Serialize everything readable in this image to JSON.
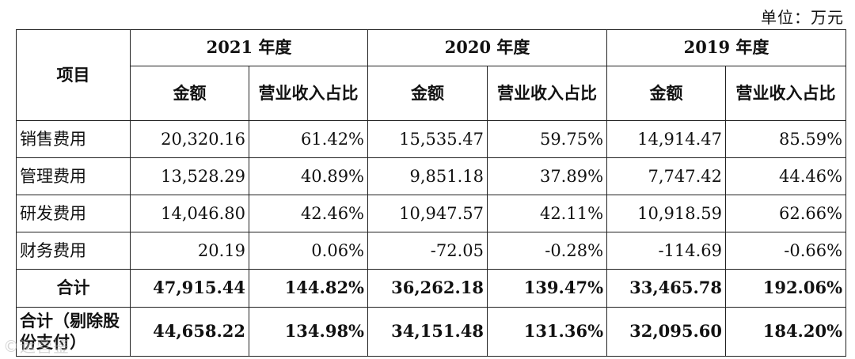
{
  "unit_label": "单位：万元",
  "header": {
    "item_label": "项目",
    "years": [
      "2021 年度",
      "2020 年度",
      "2019 年度"
    ],
    "amount_label": "金额",
    "ratio_label": "营业收入占比"
  },
  "rows": [
    {
      "label": "销售费用",
      "values": [
        "20,320.16",
        "61.42%",
        "15,535.47",
        "59.75%",
        "14,914.47",
        "85.59%"
      ]
    },
    {
      "label": "管理费用",
      "values": [
        "13,528.29",
        "40.89%",
        "9,851.18",
        "37.89%",
        "7,747.42",
        "44.46%"
      ]
    },
    {
      "label": "研发费用",
      "values": [
        "14,046.80",
        "42.46%",
        "10,947.57",
        "42.11%",
        "10,918.59",
        "62.66%"
      ]
    },
    {
      "label": "财务费用",
      "values": [
        "20.19",
        "0.06%",
        "-72.05",
        "-0.28%",
        "-114.69",
        "-0.66%"
      ]
    }
  ],
  "total": {
    "label": "合计",
    "values": [
      "47,915.44",
      "144.82%",
      "36,262.18",
      "139.47%",
      "33,465.78",
      "192.06%"
    ]
  },
  "total_excl": {
    "label": "合计（剔除股份支付）",
    "values": [
      "44,658.22",
      "134.98%",
      "34,151.48",
      "131.36%",
      "32,095.60",
      "184.20%"
    ]
  },
  "watermark": "©运营鉴"
}
